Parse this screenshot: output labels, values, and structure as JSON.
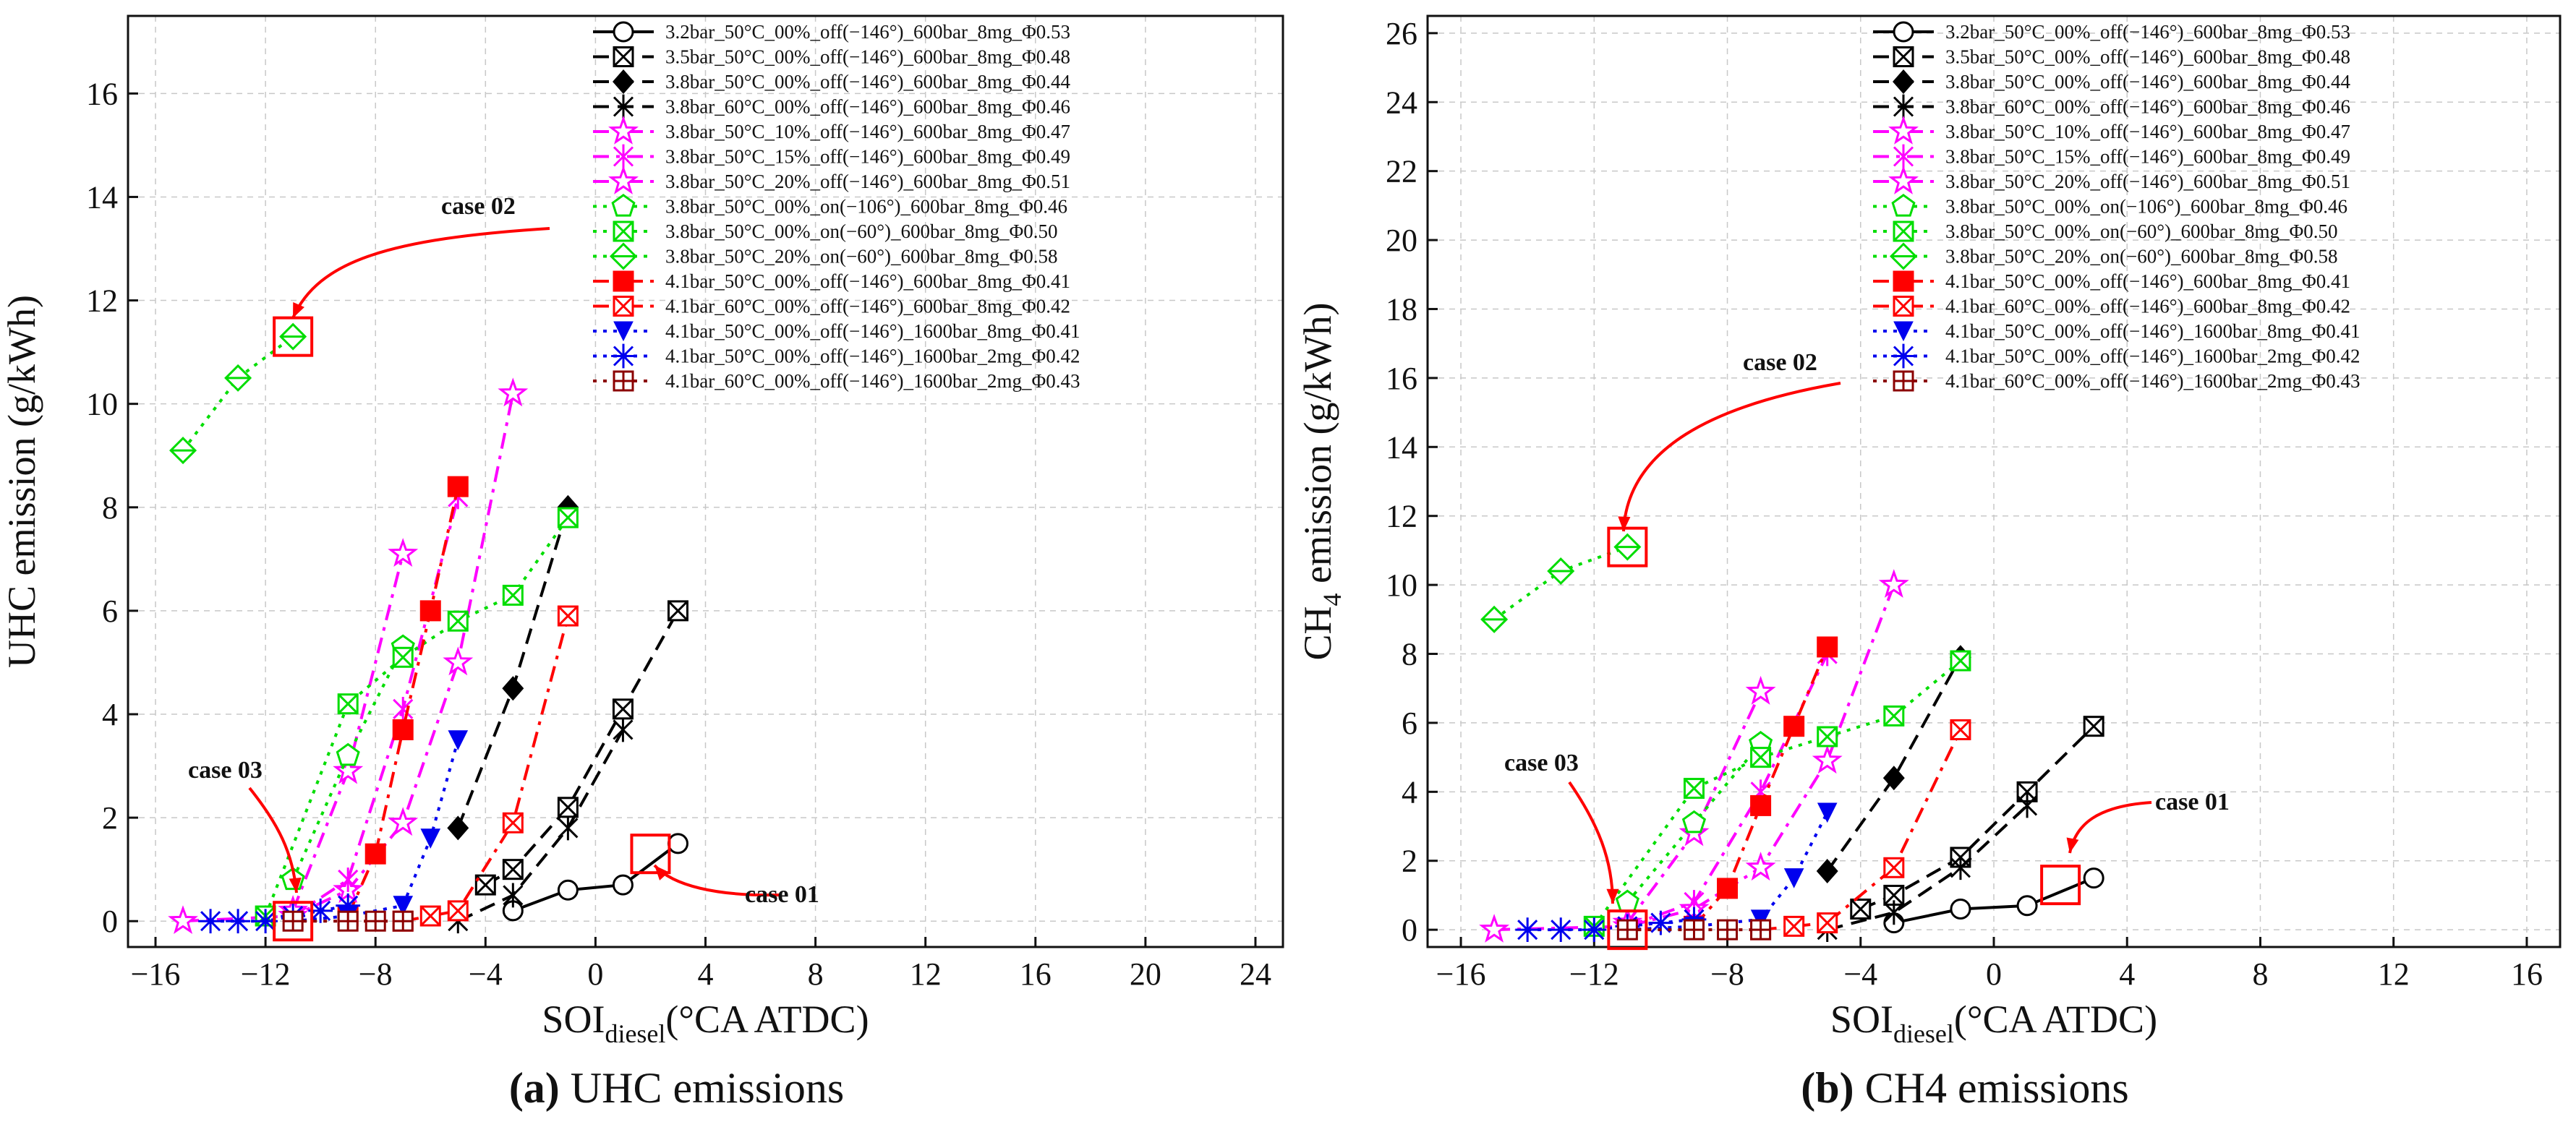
{
  "figure": {
    "panels": [
      {
        "id": "a",
        "caption": {
          "bold": "(a)",
          "rest": " UHC emissions"
        },
        "ylabel": {
          "pre": "UHC emission (g/kWh)",
          "sub": "",
          "post": ""
        },
        "xlabel": {
          "pre": "SOI",
          "sub": "diesel",
          "post": "(°CA ATDC)"
        },
        "annotations": [
          {
            "label": "case 02",
            "x": -11,
            "y": 11.3
          },
          {
            "label": "case 03",
            "x": -11,
            "y": 0.0
          },
          {
            "label": "case 01",
            "x": 2,
            "y": 1.3
          }
        ]
      },
      {
        "id": "b",
        "caption": {
          "bold": "(b)",
          "rest": " CH4 emissions"
        },
        "ylabel": {
          "pre": "CH",
          "sub": "4",
          "post": " emission (g/kWh)"
        },
        "xlabel": {
          "pre": "SOI",
          "sub": "diesel",
          "post": "(°CA ATDC)"
        },
        "annotations": [
          {
            "label": "case 02",
            "x": -11,
            "y": 11.1
          },
          {
            "label": "case 03",
            "x": -11,
            "y": 0.0
          },
          {
            "label": "case 01",
            "x": 2,
            "y": 1.3
          }
        ]
      }
    ]
  },
  "chart_data": [
    {
      "type": "line",
      "title": "",
      "xlabel": "SOIdiesel(°CA ATDC)",
      "ylabel": "UHC emission (g/kWh)",
      "xlim": [
        -17,
        25
      ],
      "ylim": [
        -0.5,
        17.5
      ],
      "xticks": [
        -16,
        -12,
        -8,
        -4,
        0,
        4,
        8,
        12,
        16,
        20,
        24
      ],
      "yticks": [
        0,
        2,
        4,
        6,
        8,
        10,
        12,
        14,
        16
      ],
      "grid": true,
      "legend_position": "top-right",
      "series": [
        {
          "name": "3.2bar_50°C_00%_off(−146°)_600bar_8mg_Φ0.53",
          "color": "#000000",
          "marker": "circle",
          "dash": "solid",
          "x": [
            -3,
            -1,
            1,
            3
          ],
          "y": [
            0.2,
            0.6,
            0.7,
            1.5
          ]
        },
        {
          "name": "3.5bar_50°C_00%_off(−146°)_600bar_8mg_Φ0.48",
          "color": "#000000",
          "marker": "xsquare",
          "dash": "dash",
          "x": [
            -4,
            -3,
            -1,
            1,
            3
          ],
          "y": [
            0.7,
            1.0,
            2.2,
            4.1,
            6.0
          ]
        },
        {
          "name": "3.8bar_50°C_00%_off(−146°)_600bar_8mg_Φ0.44",
          "color": "#000000",
          "marker": "diamond",
          "dash": "dash",
          "x": [
            -5,
            -3,
            -1
          ],
          "y": [
            1.8,
            4.5,
            8.0
          ]
        },
        {
          "name": "3.8bar_60°C_00%_off(−146°)_600bar_8mg_Φ0.46",
          "color": "#000000",
          "marker": "asterisk",
          "dash": "dash",
          "x": [
            -5,
            -3,
            -1,
            1
          ],
          "y": [
            0.0,
            0.5,
            1.8,
            3.7
          ]
        },
        {
          "name": "3.8bar_50°C_10%_off(−146°)_600bar_8mg_Φ0.47",
          "color": "#ff00ff",
          "marker": "star",
          "dash": "dashdot",
          "x": [
            -15,
            -11,
            -9,
            -7,
            -5,
            -3
          ],
          "y": [
            0.0,
            0.1,
            0.6,
            1.9,
            5.0,
            10.2
          ]
        },
        {
          "name": "3.8bar_50°C_15%_off(−146°)_600bar_8mg_Φ0.49",
          "color": "#ff00ff",
          "marker": "asterisk",
          "dash": "dashdot",
          "x": [
            -11,
            -9,
            -7,
            -5
          ],
          "y": [
            0.1,
            0.8,
            4.1,
            8.2
          ]
        },
        {
          "name": "3.8bar_50°C_20%_off(−146°)_600bar_8mg_Φ0.51",
          "color": "#ff00ff",
          "marker": "star",
          "dash": "dashdot",
          "x": [
            -11,
            -9,
            -7
          ],
          "y": [
            0.2,
            2.9,
            7.1
          ]
        },
        {
          "name": "3.8bar_50°C_00%_on(−106°)_600bar_8mg_Φ0.46",
          "color": "#00dd00",
          "marker": "pentagon",
          "dash": "dot",
          "x": [
            -11,
            -9,
            -7
          ],
          "y": [
            0.8,
            3.2,
            5.3
          ]
        },
        {
          "name": "3.8bar_50°C_00%_on(−60°)_600bar_8mg_Φ0.50",
          "color": "#00dd00",
          "marker": "xsquare",
          "dash": "dot",
          "x": [
            -12,
            -9,
            -7,
            -5,
            -3,
            -1
          ],
          "y": [
            0.1,
            4.2,
            5.1,
            5.8,
            6.3,
            7.8
          ]
        },
        {
          "name": "3.8bar_50°C_20%_on(−60°)_600bar_8mg_Φ0.58",
          "color": "#00dd00",
          "marker": "diamondline",
          "dash": "dot",
          "x": [
            -15,
            -13,
            -11
          ],
          "y": [
            9.1,
            10.5,
            11.3
          ]
        },
        {
          "name": "4.1bar_50°C_00%_off(−146°)_600bar_8mg_Φ0.41",
          "color": "#ff0000",
          "marker": "square",
          "dash": "dashdot",
          "x": [
            -9,
            -8,
            -7,
            -6,
            -5
          ],
          "y": [
            0.1,
            1.3,
            3.7,
            6.0,
            8.4
          ]
        },
        {
          "name": "4.1bar_60°C_00%_off(−146°)_600bar_8mg_Φ0.42",
          "color": "#ff0000",
          "marker": "xsquare",
          "dash": "dashdot",
          "x": [
            -7,
            -6,
            -5,
            -3,
            -1
          ],
          "y": [
            0.0,
            0.1,
            0.2,
            1.9,
            5.9
          ]
        },
        {
          "name": "4.1bar_50°C_00%_off(−146°)_1600bar_8mg_Φ0.41",
          "color": "#0000ee",
          "marker": "triangle-down",
          "dash": "dot",
          "x": [
            -11,
            -9,
            -7,
            -6,
            -5
          ],
          "y": [
            0.0,
            0.1,
            0.3,
            1.6,
            3.5
          ]
        },
        {
          "name": "4.1bar_50°C_00%_off(−146°)_1600bar_2mg_Φ0.42",
          "color": "#0000ee",
          "marker": "asteriskstar",
          "dash": "dot",
          "x": [
            -14,
            -13,
            -12,
            -11,
            -10,
            -9
          ],
          "y": [
            0.0,
            0.0,
            0.0,
            0.1,
            0.2,
            0.3
          ]
        },
        {
          "name": "4.1bar_60°C_00%_off(−146°)_1600bar_2mg_Φ0.43",
          "color": "#8b0000",
          "marker": "plussquare",
          "dash": "dot",
          "x": [
            -11,
            -9,
            -8,
            -7
          ],
          "y": [
            0.0,
            0.0,
            0.0,
            0.0
          ]
        }
      ]
    },
    {
      "type": "line",
      "title": "",
      "xlabel": "SOIdiesel(°CA ATDC)",
      "ylabel": "CH4 emission (g/kWh)",
      "xlim": [
        -17,
        17
      ],
      "ylim": [
        -0.5,
        26.5
      ],
      "xticks": [
        -16,
        -12,
        -8,
        -4,
        0,
        4,
        8,
        12,
        16
      ],
      "yticks": [
        0,
        2,
        4,
        6,
        8,
        10,
        12,
        14,
        16,
        18,
        20,
        22,
        24,
        26
      ],
      "grid": true,
      "legend_position": "top-right",
      "series": [
        {
          "name": "3.2bar_50°C_00%_off(−146°)_600bar_8mg_Φ0.53",
          "color": "#000000",
          "marker": "circle",
          "dash": "solid",
          "x": [
            -3,
            -1,
            1,
            3
          ],
          "y": [
            0.2,
            0.6,
            0.7,
            1.5
          ]
        },
        {
          "name": "3.5bar_50°C_00%_off(−146°)_600bar_8mg_Φ0.48",
          "color": "#000000",
          "marker": "xsquare",
          "dash": "dash",
          "x": [
            -4,
            -3,
            -1,
            1,
            3
          ],
          "y": [
            0.6,
            1.0,
            2.1,
            4.0,
            5.9
          ]
        },
        {
          "name": "3.8bar_50°C_00%_off(−146°)_600bar_8mg_Φ0.44",
          "color": "#000000",
          "marker": "diamond",
          "dash": "dash",
          "x": [
            -5,
            -3,
            -1
          ],
          "y": [
            1.7,
            4.4,
            7.9
          ]
        },
        {
          "name": "3.8bar_60°C_00%_off(−146°)_600bar_8mg_Φ0.46",
          "color": "#000000",
          "marker": "asterisk",
          "dash": "dash",
          "x": [
            -5,
            -3,
            -1,
            1
          ],
          "y": [
            0.0,
            0.5,
            1.8,
            3.6
          ]
        },
        {
          "name": "3.8bar_50°C_10%_off(−146°)_600bar_8mg_Φ0.47",
          "color": "#ff00ff",
          "marker": "star",
          "dash": "dashdot",
          "x": [
            -15,
            -11,
            -9,
            -7,
            -5,
            -3
          ],
          "y": [
            0.0,
            0.1,
            0.6,
            1.8,
            4.9,
            10.0
          ]
        },
        {
          "name": "3.8bar_50°C_15%_off(−146°)_600bar_8mg_Φ0.49",
          "color": "#ff00ff",
          "marker": "asterisk",
          "dash": "dashdot",
          "x": [
            -11,
            -9,
            -7,
            -5
          ],
          "y": [
            0.1,
            0.8,
            4.0,
            8.0
          ]
        },
        {
          "name": "3.8bar_50°C_20%_off(−146°)_600bar_8mg_Φ0.51",
          "color": "#ff00ff",
          "marker": "star",
          "dash": "dashdot",
          "x": [
            -11,
            -9,
            -7
          ],
          "y": [
            0.2,
            2.8,
            6.9
          ]
        },
        {
          "name": "3.8bar_50°C_00%_on(−106°)_600bar_8mg_Φ0.46",
          "color": "#00dd00",
          "marker": "pentagon",
          "dash": "dot",
          "x": [
            -11,
            -9,
            -7
          ],
          "y": [
            0.8,
            3.1,
            5.4
          ]
        },
        {
          "name": "3.8bar_50°C_00%_on(−60°)_600bar_8mg_Φ0.50",
          "color": "#00dd00",
          "marker": "xsquare",
          "dash": "dot",
          "x": [
            -12,
            -9,
            -7,
            -5,
            -3,
            -1
          ],
          "y": [
            0.1,
            4.1,
            5.0,
            5.6,
            6.2,
            7.8
          ]
        },
        {
          "name": "3.8bar_50°C_20%_on(−60°)_600bar_8mg_Φ0.58",
          "color": "#00dd00",
          "marker": "diamondline",
          "dash": "dot",
          "x": [
            -15,
            -13,
            -11
          ],
          "y": [
            9.0,
            10.4,
            11.1
          ]
        },
        {
          "name": "4.1bar_50°C_00%_off(−146°)_600bar_8mg_Φ0.41",
          "color": "#ff0000",
          "marker": "square",
          "dash": "dashdot",
          "x": [
            -9,
            -8,
            -7,
            -6,
            -5
          ],
          "y": [
            0.1,
            1.2,
            3.6,
            5.9,
            8.2
          ]
        },
        {
          "name": "4.1bar_60°C_00%_off(−146°)_600bar_8mg_Φ0.42",
          "color": "#ff0000",
          "marker": "xsquare",
          "dash": "dashdot",
          "x": [
            -7,
            -6,
            -5,
            -3,
            -1
          ],
          "y": [
            0.0,
            0.1,
            0.2,
            1.8,
            5.8
          ]
        },
        {
          "name": "4.1bar_50°C_00%_off(−146°)_1600bar_8mg_Φ0.41",
          "color": "#0000ee",
          "marker": "triangle-down",
          "dash": "dot",
          "x": [
            -11,
            -9,
            -7,
            -6,
            -5
          ],
          "y": [
            0.0,
            0.1,
            0.3,
            1.5,
            3.4
          ]
        },
        {
          "name": "4.1bar_50°C_00%_off(−146°)_1600bar_2mg_Φ0.42",
          "color": "#0000ee",
          "marker": "asteriskstar",
          "dash": "dot",
          "x": [
            -14,
            -13,
            -12,
            -11,
            -10,
            -9
          ],
          "y": [
            0.0,
            0.0,
            0.0,
            0.1,
            0.2,
            0.3
          ]
        },
        {
          "name": "4.1bar_60°C_00%_off(−146°)_1600bar_2mg_Φ0.43",
          "color": "#8b0000",
          "marker": "plussquare",
          "dash": "dot",
          "x": [
            -11,
            -9,
            -8,
            -7
          ],
          "y": [
            0.0,
            0.0,
            0.0,
            0.0
          ]
        }
      ]
    }
  ]
}
